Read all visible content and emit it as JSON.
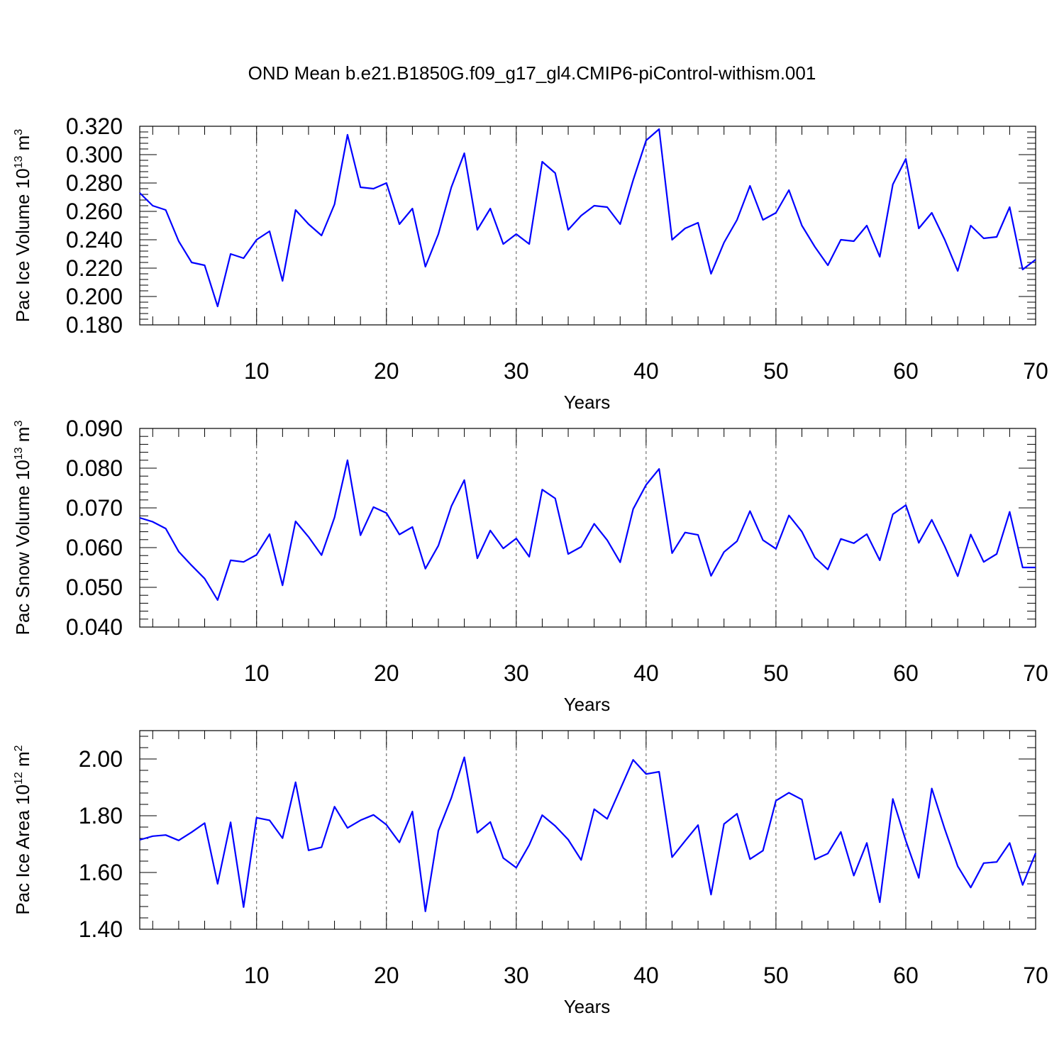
{
  "title": "OND Mean b.e21.B1850G.f09_g17_gl4.CMIP6-piControl-withism.001",
  "colors": {
    "line": "#0000ff",
    "axis": "#000000",
    "grid": "#555555"
  },
  "chart_data": [
    {
      "type": "line",
      "xlabel": "Years",
      "ylabel": {
        "text": "Pac Ice Volume 10",
        "exponent": "13",
        "unit": " m",
        "unit_exponent": "3"
      },
      "xlim": [
        1,
        70
      ],
      "ylim": [
        0.18,
        0.32
      ],
      "xticks": [
        "10",
        "20",
        "30",
        "40",
        "50",
        "60",
        "70"
      ],
      "yticks": [
        "0.180",
        "0.200",
        "0.220",
        "0.240",
        "0.260",
        "0.280",
        "0.300",
        "0.320"
      ],
      "grid": "vertical dashed at x ticks",
      "x": [
        1,
        2,
        3,
        4,
        5,
        6,
        7,
        8,
        9,
        10,
        11,
        12,
        13,
        14,
        15,
        16,
        17,
        18,
        19,
        20,
        21,
        22,
        23,
        24,
        25,
        26,
        27,
        28,
        29,
        30,
        31,
        32,
        33,
        34,
        35,
        36,
        37,
        38,
        39,
        40,
        41,
        42,
        43,
        44,
        45,
        46,
        47,
        48,
        49,
        50,
        51,
        52,
        53,
        54,
        55,
        56,
        57,
        58,
        59,
        60,
        61,
        62,
        63,
        64,
        65,
        66,
        67,
        68,
        69,
        70
      ],
      "values": [
        0.273,
        0.264,
        0.261,
        0.239,
        0.224,
        0.222,
        0.193,
        0.23,
        0.227,
        0.24,
        0.246,
        0.211,
        0.261,
        0.251,
        0.243,
        0.265,
        0.314,
        0.277,
        0.276,
        0.28,
        0.251,
        0.262,
        0.221,
        0.244,
        0.277,
        0.301,
        0.247,
        0.262,
        0.237,
        0.244,
        0.237,
        0.295,
        0.287,
        0.247,
        0.257,
        0.264,
        0.263,
        0.251,
        0.282,
        0.31,
        0.318,
        0.24,
        0.248,
        0.252,
        0.216,
        0.238,
        0.254,
        0.278,
        0.254,
        0.259,
        0.275,
        0.25,
        0.235,
        0.222,
        0.24,
        0.239,
        0.25,
        0.228,
        0.279,
        0.297,
        0.248,
        0.259,
        0.24,
        0.218,
        0.25,
        0.241,
        0.242,
        0.263,
        0.219,
        0.226
      ]
    },
    {
      "type": "line",
      "xlabel": "Years",
      "ylabel": {
        "text": "Pac Snow Volume 10",
        "exponent": "13",
        "unit": " m",
        "unit_exponent": "3"
      },
      "xlim": [
        1,
        70
      ],
      "ylim": [
        0.04,
        0.09
      ],
      "xticks": [
        "10",
        "20",
        "30",
        "40",
        "50",
        "60",
        "70"
      ],
      "yticks": [
        "0.040",
        "0.050",
        "0.060",
        "0.070",
        "0.080",
        "0.090"
      ],
      "grid": "vertical dashed at x ticks",
      "x": [
        1,
        2,
        3,
        4,
        5,
        6,
        7,
        8,
        9,
        10,
        11,
        12,
        13,
        14,
        15,
        16,
        17,
        18,
        19,
        20,
        21,
        22,
        23,
        24,
        25,
        26,
        27,
        28,
        29,
        30,
        31,
        32,
        33,
        34,
        35,
        36,
        37,
        38,
        39,
        40,
        41,
        42,
        43,
        44,
        45,
        46,
        47,
        48,
        49,
        50,
        51,
        52,
        53,
        54,
        55,
        56,
        57,
        58,
        59,
        60,
        61,
        62,
        63,
        64,
        65,
        66,
        67,
        68,
        69,
        70
      ],
      "values": [
        0.0675,
        0.0665,
        0.0648,
        0.059,
        0.0555,
        0.0522,
        0.0468,
        0.0568,
        0.0564,
        0.0582,
        0.0634,
        0.0505,
        0.0666,
        0.0627,
        0.0581,
        0.0676,
        0.082,
        0.0631,
        0.0702,
        0.0687,
        0.0633,
        0.0652,
        0.0547,
        0.0605,
        0.0704,
        0.077,
        0.0573,
        0.0643,
        0.0598,
        0.0623,
        0.0577,
        0.0746,
        0.0724,
        0.0584,
        0.0602,
        0.066,
        0.0619,
        0.0563,
        0.0697,
        0.0758,
        0.0798,
        0.0586,
        0.0638,
        0.0632,
        0.0529,
        0.0589,
        0.0616,
        0.0692,
        0.0619,
        0.0597,
        0.0681,
        0.064,
        0.0575,
        0.0545,
        0.0622,
        0.0611,
        0.0634,
        0.0568,
        0.0684,
        0.0707,
        0.0612,
        0.067,
        0.0603,
        0.0528,
        0.0633,
        0.0564,
        0.0584,
        0.069,
        0.055,
        0.055
      ]
    },
    {
      "type": "line",
      "xlabel": "Years",
      "ylabel": {
        "text": "Pac Ice Area 10",
        "exponent": "12",
        "unit": " m",
        "unit_exponent": "2"
      },
      "xlim": [
        1,
        70
      ],
      "ylim": [
        1.4,
        2.1
      ],
      "xticks": [
        "10",
        "20",
        "30",
        "40",
        "50",
        "60",
        "70"
      ],
      "yticks": [
        "1.40",
        "1.60",
        "1.80",
        "2.00"
      ],
      "ytick_values": [
        1.4,
        1.6,
        1.8,
        2.0
      ],
      "grid": "vertical dashed at x ticks",
      "x": [
        1,
        2,
        3,
        4,
        5,
        6,
        7,
        8,
        9,
        10,
        11,
        12,
        13,
        14,
        15,
        16,
        17,
        18,
        19,
        20,
        21,
        22,
        23,
        24,
        25,
        26,
        27,
        28,
        29,
        30,
        31,
        32,
        33,
        34,
        35,
        36,
        37,
        38,
        39,
        40,
        41,
        42,
        43,
        44,
        45,
        46,
        47,
        48,
        49,
        50,
        51,
        52,
        53,
        54,
        55,
        56,
        57,
        58,
        59,
        60,
        61,
        62,
        63,
        64,
        65,
        66,
        67,
        68,
        69,
        70
      ],
      "values": [
        1.715,
        1.728,
        1.732,
        1.713,
        1.742,
        1.774,
        1.56,
        1.777,
        1.478,
        1.793,
        1.784,
        1.721,
        1.918,
        1.678,
        1.689,
        1.832,
        1.757,
        1.784,
        1.803,
        1.768,
        1.706,
        1.815,
        1.463,
        1.747,
        1.863,
        2.006,
        1.74,
        1.778,
        1.651,
        1.617,
        1.697,
        1.802,
        1.764,
        1.716,
        1.644,
        1.823,
        1.789,
        1.893,
        1.997,
        1.947,
        1.955,
        1.654,
        1.711,
        1.767,
        1.522,
        1.771,
        1.807,
        1.647,
        1.677,
        1.853,
        1.881,
        1.857,
        1.646,
        1.667,
        1.743,
        1.589,
        1.704,
        1.495,
        1.859,
        1.712,
        1.581,
        1.896,
        1.753,
        1.622,
        1.547,
        1.633,
        1.637,
        1.704,
        1.556,
        1.668
      ]
    }
  ]
}
